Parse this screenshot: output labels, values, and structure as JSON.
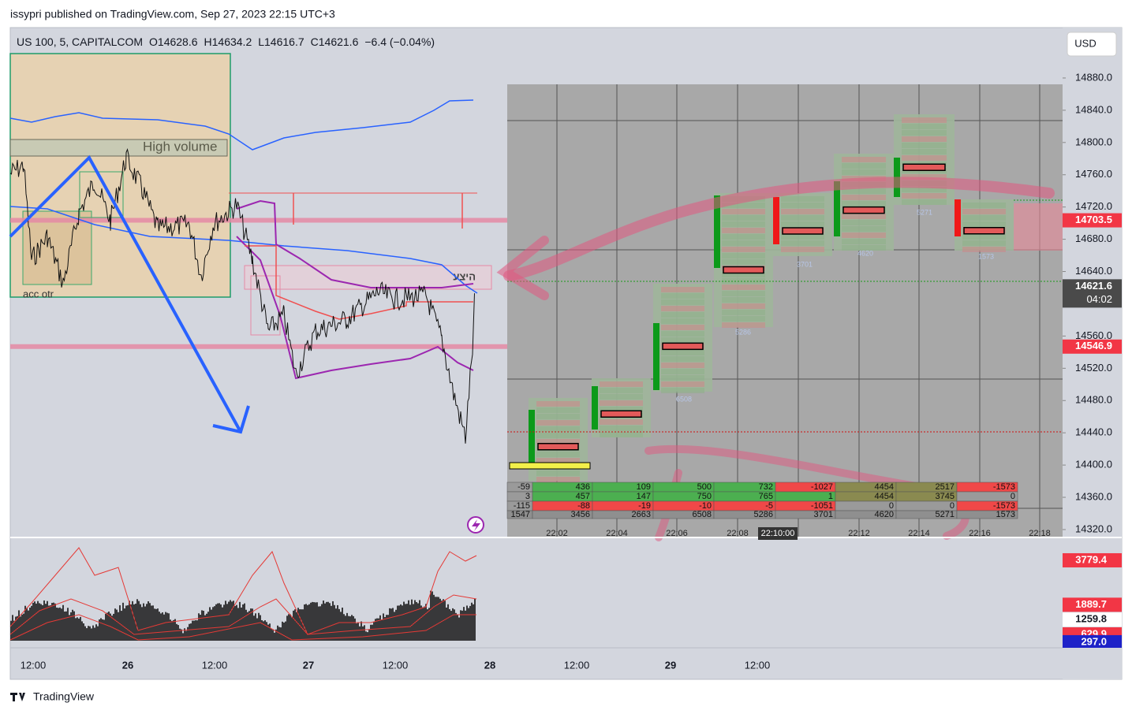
{
  "header": {
    "publisher": "issypri published on TradingView.com, Sep 27, 2023 22:15 UTC+3"
  },
  "legend": {
    "symbol": "US 100, 5, CAPITALCOM",
    "open": "O14628.6",
    "high": "H14634.2",
    "low": "L14616.7",
    "close": "C14621.6",
    "change": "−6.4 (−0.04%)"
  },
  "currency": "USD",
  "price_axis": {
    "ylim": [
      14310.2,
      14942.5
    ],
    "yticks": [
      {
        "value": 14320,
        "label": "14320.0"
      },
      {
        "value": 14360,
        "label": "14360.0"
      },
      {
        "value": 14400,
        "label": "14400.0"
      },
      {
        "value": 14440,
        "label": "14440.0"
      },
      {
        "value": 14480,
        "label": "14480.0"
      },
      {
        "value": 14520,
        "label": "14520.0"
      },
      {
        "value": 14560,
        "label": "14560.0"
      },
      {
        "value": 14640,
        "label": "14640.0"
      },
      {
        "value": 14680,
        "label": "14680.0"
      },
      {
        "value": 14720,
        "label": "14720.0"
      },
      {
        "value": 14760,
        "label": "14760.0"
      },
      {
        "value": 14800,
        "label": "14800.0"
      },
      {
        "value": 14840,
        "label": "14840.0"
      },
      {
        "value": 14880,
        "label": "14880.0"
      }
    ],
    "price_labels": [
      {
        "value": 14703.5,
        "color": "#f23645"
      },
      {
        "value": 14621.6,
        "countdown": "04:02",
        "color": "#4a4a4a"
      },
      {
        "value": 14546.9,
        "color": "#f23645"
      }
    ]
  },
  "indicator_axis": {
    "ylim": [
      60,
      4750
    ],
    "labels": [
      {
        "value": 3779.4,
        "color": "#f23645"
      },
      {
        "value": 1889.7,
        "color": "#f23645"
      },
      {
        "value": 1259.8,
        "color": "#ffffff"
      },
      {
        "value": 629.9,
        "color": "#f23645"
      },
      {
        "value": 297,
        "label": "297.0",
        "color": "#1e22c8"
      }
    ]
  },
  "time_axis": [
    "12:00",
    "26",
    "12:00",
    "27",
    "12:00",
    "28",
    "12:00",
    "29",
    "12:00"
  ],
  "footprint": {
    "times": [
      "22:02",
      "22:04",
      "22:06",
      "22:08",
      "22:10:00",
      "22:12",
      "22:14",
      "22:16",
      "22:18"
    ],
    "cluster_volumes": [
      "6508",
      "5286",
      "3701",
      "4620",
      "5271",
      "1573"
    ],
    "summary": [
      [
        "-59",
        "436",
        "109",
        "500",
        "732",
        "-1027",
        "4454",
        "2517",
        "-1573"
      ],
      [
        "3",
        "457",
        "147",
        "750",
        "765",
        "1",
        "4454",
        "3745",
        "0"
      ],
      [
        "-115",
        "-88",
        "-19",
        "-10",
        "-5",
        "-1051",
        "0",
        "0",
        "-1573"
      ],
      [
        "1547",
        "3456",
        "2663",
        "6508",
        "5286",
        "3701",
        "4620",
        "5271",
        "1573"
      ]
    ]
  },
  "annotations": {
    "high_volume": "High volume",
    "acc_otr": "acc otr",
    "supply": "היצע"
  },
  "footer": "TradingView"
}
